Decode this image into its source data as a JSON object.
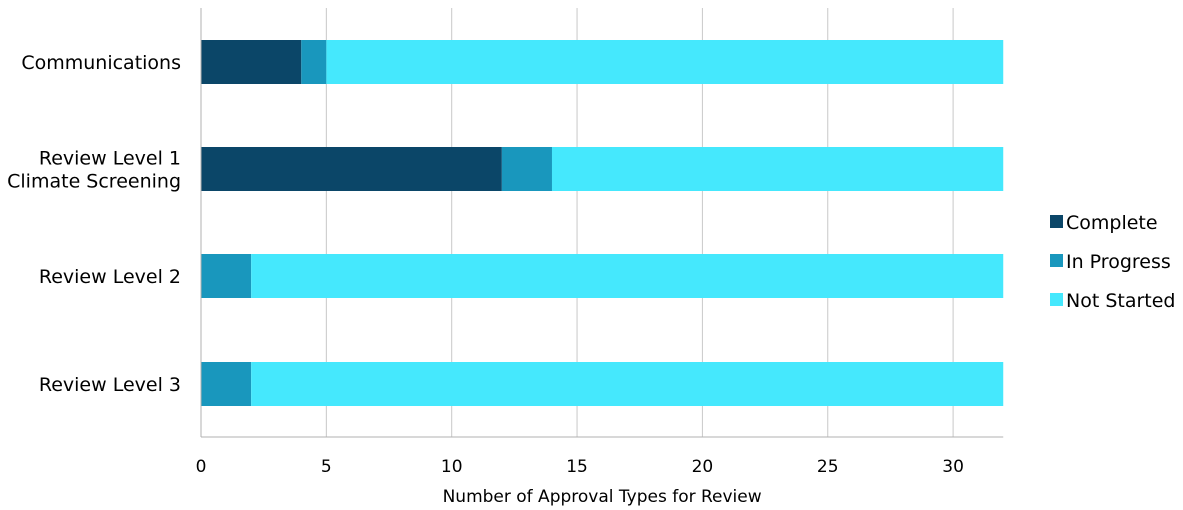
{
  "chart_data": {
    "type": "bar",
    "orientation": "horizontal",
    "stacked": true,
    "categories": [
      [
        "Communications"
      ],
      [
        "Review Level 1",
        "Climate Screening"
      ],
      [
        "Review Level 2"
      ],
      [
        "Review Level 3"
      ]
    ],
    "series": [
      {
        "name": "Complete",
        "color": "#0b4668",
        "values": [
          4,
          12,
          0,
          0
        ]
      },
      {
        "name": "In Progress",
        "color": "#1997bd",
        "values": [
          1,
          2,
          2,
          2
        ]
      },
      {
        "name": "Not Started",
        "color": "#45e8fd",
        "values": [
          27,
          18,
          30,
          30
        ]
      }
    ],
    "xlabel": "Number of Approval Types for Review",
    "xlim": [
      0,
      32
    ],
    "xticks": [
      0,
      5,
      10,
      15,
      20,
      25,
      30
    ],
    "grid": "vertical",
    "legend": "right"
  }
}
